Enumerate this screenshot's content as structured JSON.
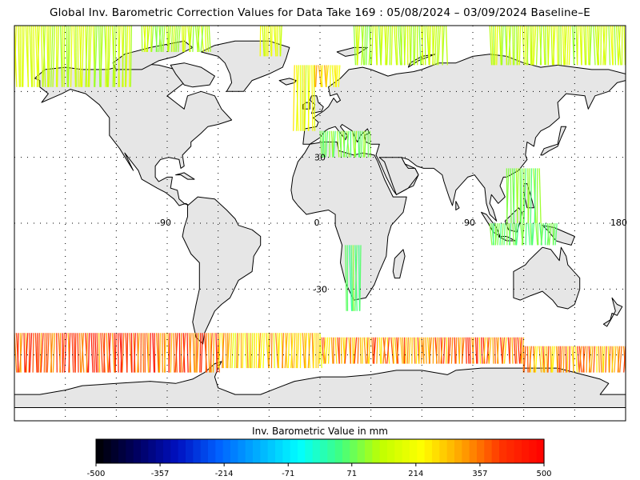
{
  "title": "Global Inv. Barometric Correction Values for Data Take 169 : 05/08/2024 – 03/09/2024 Baseline–E",
  "colorbar": {
    "label": "Inv. Barometric Value in mm",
    "ticks": [
      "-500",
      "-357",
      "-214",
      "-71",
      "71",
      "214",
      "357",
      "500"
    ],
    "min": -500,
    "max": 500,
    "stops": [
      "#000000",
      "#000060",
      "#0010c0",
      "#0060ff",
      "#00b0ff",
      "#00ffff",
      "#40ff80",
      "#c0ff00",
      "#ffff00",
      "#ffa000",
      "#ff3000",
      "#ff0000"
    ]
  },
  "map": {
    "projection": "equirectangular",
    "lon_range": [
      -180,
      180
    ],
    "lat_range": [
      -90,
      90
    ],
    "grid": "dotted 30 degree",
    "lon_labels": [
      {
        "lon": -90,
        "text": "-90"
      },
      {
        "lon": 0,
        "text": "0"
      },
      {
        "lon": 90,
        "text": "90"
      },
      {
        "lon": 180,
        "text": "180"
      }
    ],
    "lat_labels": [
      {
        "lat": 30,
        "text": "30"
      },
      {
        "lat": -30,
        "text": "-30"
      }
    ],
    "colors": {
      "land": "#e6e6e6",
      "ocean": "#ffffff",
      "coast": "#000000"
    }
  }
}
